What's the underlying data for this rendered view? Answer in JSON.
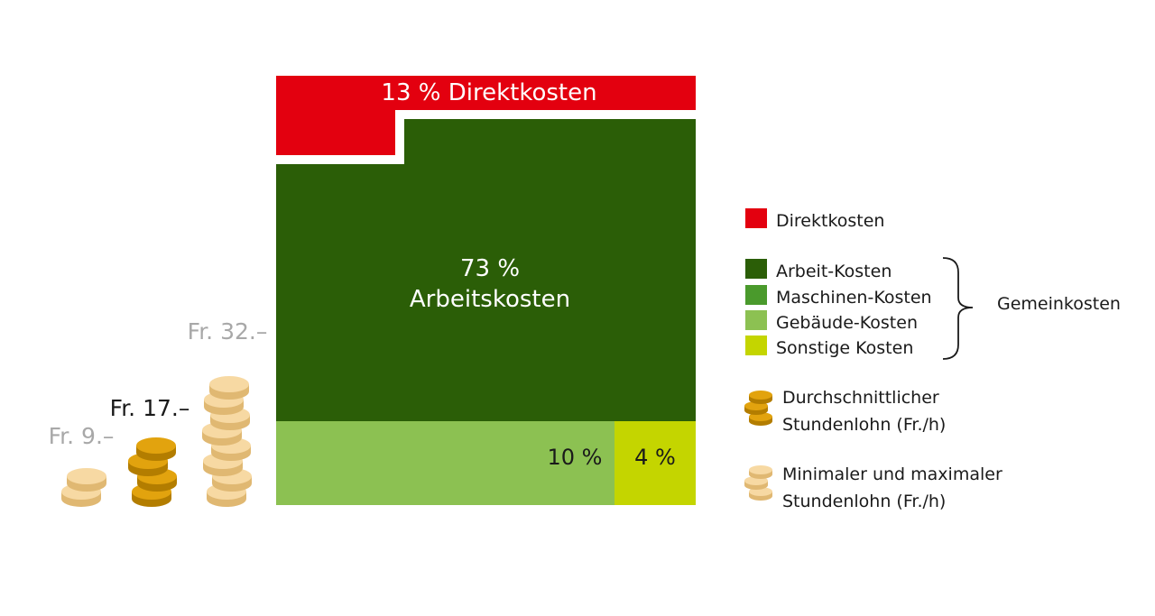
{
  "chart_data": {
    "type": "area-treemap",
    "segments": [
      {
        "key": "direkt",
        "label": "Direktkosten",
        "percent": 13,
        "value_label": "13 % Direktkosten",
        "color": "#e3000f"
      },
      {
        "key": "arbeit",
        "label": "Arbeit-Kosten",
        "percent": 73,
        "value_label_line1": "73 %",
        "value_label_line2": "Arbeitskosten",
        "color": "#2b5e07"
      },
      {
        "key": "maschinen",
        "label": "Maschinen-Kosten",
        "percent": null,
        "value_label": "",
        "color": "#4a9a2c"
      },
      {
        "key": "gebaeude",
        "label": "Gebäude-Kosten",
        "percent": 10,
        "value_label": "10 %",
        "color": "#8cc152"
      },
      {
        "key": "sonstige",
        "label": "Sonstige Kosten",
        "percent": 4,
        "value_label": "4 %",
        "color": "#c4d500"
      }
    ],
    "group_label": "Gemeinkosten",
    "wages": [
      {
        "key": "min",
        "label": "Fr. 9.–",
        "value": 9,
        "type": "minmax",
        "coins": 2
      },
      {
        "key": "avg",
        "label": "Fr. 17.–",
        "value": 17,
        "type": "average",
        "coins": 4
      },
      {
        "key": "max",
        "label": "Fr. 32.–",
        "value": 32,
        "type": "minmax",
        "coins": 8
      }
    ],
    "legend": {
      "direkt": "Direktkosten",
      "arbeit": "Arbeit-Kosten",
      "maschinen": "Maschinen-Kosten",
      "gebaeude": "Gebäude-Kosten",
      "sonstige": "Sonstige Kosten",
      "group": "Gemeinkosten",
      "avg_line1": "Durchschnittlicher",
      "avg_line2": "Stundenlohn (Fr./h)",
      "minmax_line1": "Minimaler und maximaler",
      "minmax_line2": "Stundenlohn (Fr./h)"
    },
    "colors": {
      "coin_avg": "#e2a30e",
      "coin_avg_edge": "#b37d00",
      "coin_minmax": "#f7d9a3",
      "coin_minmax_edge": "#e0b872",
      "label_avg": "#1a1a1a",
      "label_minmax": "#a8a8a8"
    }
  }
}
